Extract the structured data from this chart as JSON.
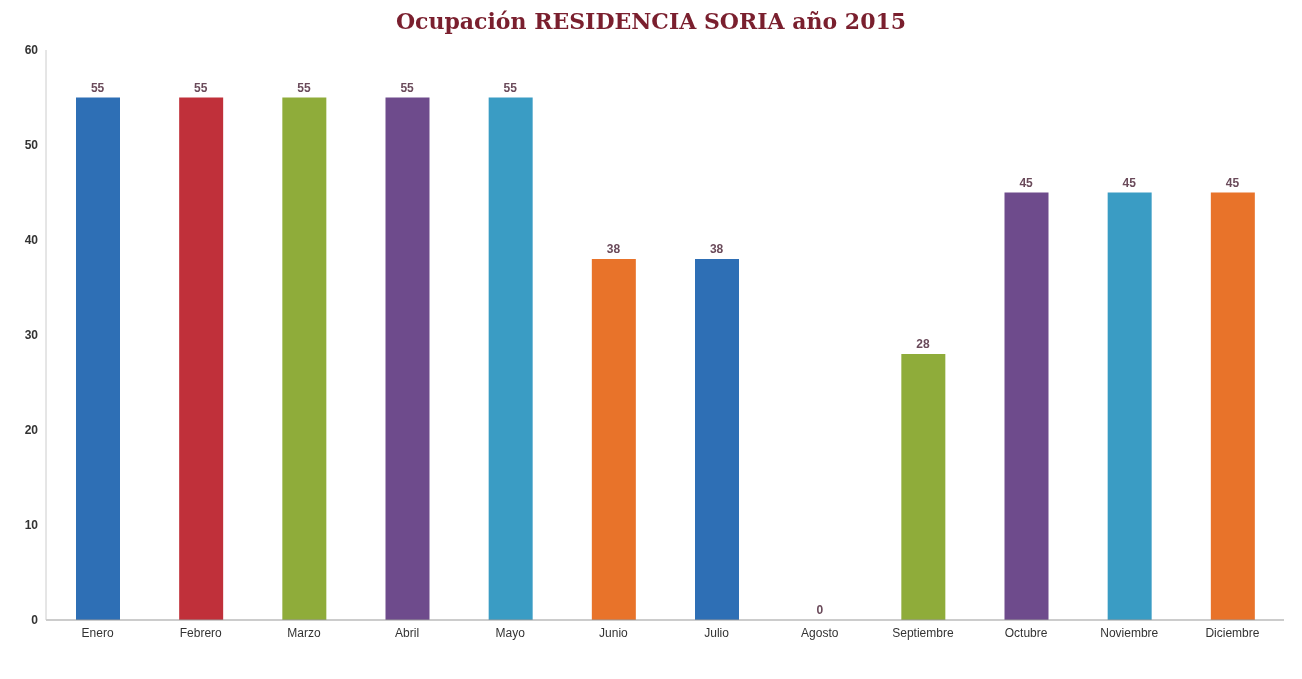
{
  "chart_data": {
    "type": "bar",
    "title": "Ocupación RESIDENCIA SORIA año 2015",
    "categories": [
      "Enero",
      "Febrero",
      "Marzo",
      "Abril",
      "Mayo",
      "Junio",
      "Julio",
      "Agosto",
      "Septiembre",
      "Octubre",
      "Noviembre",
      "Diciembre"
    ],
    "values": [
      55,
      55,
      55,
      55,
      55,
      38,
      38,
      0,
      28,
      45,
      45,
      45
    ],
    "colors": [
      "#2e6fb5",
      "#c0303a",
      "#8fac3a",
      "#6e4b8c",
      "#3a9cc4",
      "#e8732a",
      "#2e6fb5",
      "#c0303a",
      "#8fac3a",
      "#6e4b8c",
      "#3a9cc4",
      "#e8732a"
    ],
    "ylim": [
      0,
      60
    ],
    "yticks": [
      0,
      10,
      20,
      30,
      40,
      50,
      60
    ],
    "grid": false,
    "legend": false,
    "data_labels": true
  }
}
